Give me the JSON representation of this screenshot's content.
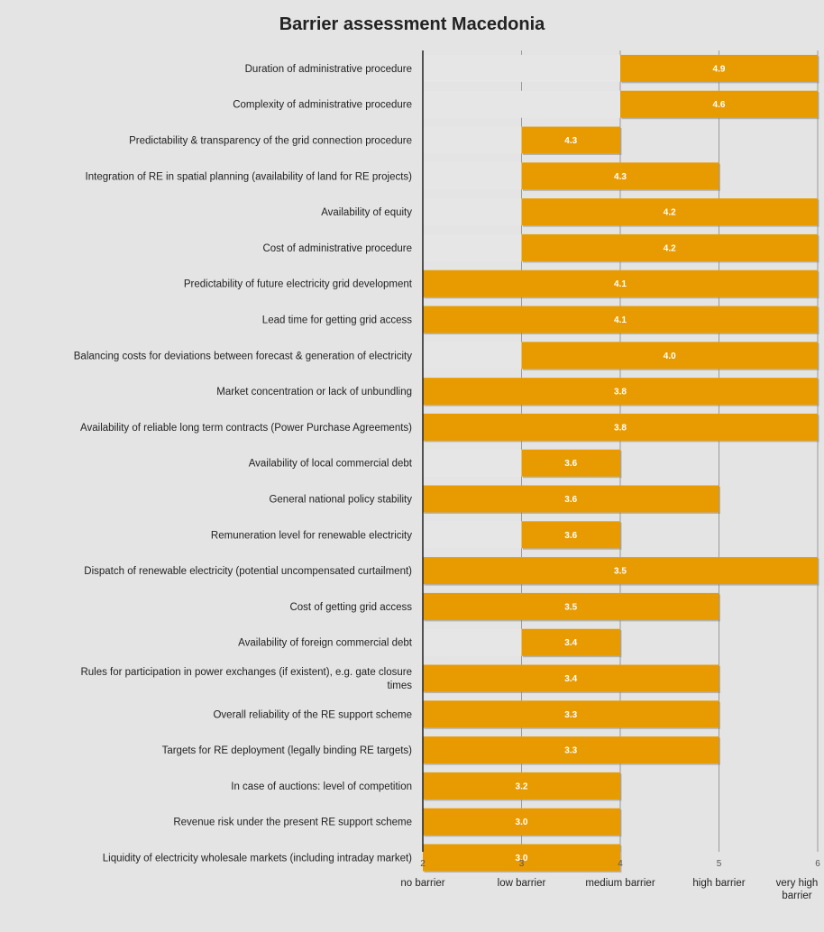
{
  "chart_data": {
    "type": "bar",
    "orientation": "horizontal",
    "title": "Barrier assessment  Macedonia",
    "xlim": [
      2,
      6
    ],
    "ticks": [
      2,
      3,
      4,
      5,
      6
    ],
    "scale_labels": [
      {
        "value": 2,
        "lines": [
          "no barrier"
        ]
      },
      {
        "value": 3,
        "lines": [
          "low barrier"
        ]
      },
      {
        "value": 4,
        "lines": [
          "medium barrier"
        ]
      },
      {
        "value": 5,
        "lines": [
          "high barrier"
        ]
      },
      {
        "value": 6,
        "lines": [
          "very high",
          "barrier"
        ]
      }
    ],
    "grid": true,
    "colors": {
      "bar": "#e89b00",
      "range": "#e6e6e6",
      "background": "#e4e4e4",
      "grid": "#9a9a9a"
    },
    "categories": [
      {
        "lines": [
          "Duration of administrative procedure"
        ],
        "value": 4.9,
        "min": 2,
        "max": 6,
        "bar_from": 4,
        "bar_to": 6
      },
      {
        "lines": [
          "Complexity of administrative procedure"
        ],
        "value": 4.6,
        "min": 2,
        "max": 6,
        "bar_from": 4,
        "bar_to": 6
      },
      {
        "lines": [
          "Predictability & transparency of the grid connection procedure"
        ],
        "value": 4.3,
        "min": 2,
        "max": 4,
        "bar_from": 3,
        "bar_to": 4
      },
      {
        "lines": [
          "Integration of RE in spatial planning (availability of land for RE projects)"
        ],
        "value": 4.3,
        "min": 2,
        "max": 5,
        "bar_from": 3,
        "bar_to": 5
      },
      {
        "lines": [
          "Availability of equity"
        ],
        "value": 4.2,
        "min": 2,
        "max": 6,
        "bar_from": 3,
        "bar_to": 6
      },
      {
        "lines": [
          "Cost of administrative procedure"
        ],
        "value": 4.2,
        "min": 2,
        "max": 6,
        "bar_from": 3,
        "bar_to": 6
      },
      {
        "lines": [
          "Predictability of future electricity grid development"
        ],
        "value": 4.1,
        "min": 2,
        "max": 6,
        "bar_from": 2,
        "bar_to": 6
      },
      {
        "lines": [
          "Lead time for getting grid access"
        ],
        "value": 4.1,
        "min": 2,
        "max": 6,
        "bar_from": 2,
        "bar_to": 6
      },
      {
        "lines": [
          "Balancing costs for deviations between forecast & generation of electricity"
        ],
        "value": 4.0,
        "min": 2,
        "max": 6,
        "bar_from": 3,
        "bar_to": 6
      },
      {
        "lines": [
          "Market concentration or lack of unbundling"
        ],
        "value": 3.8,
        "min": 2,
        "max": 6,
        "bar_from": 2,
        "bar_to": 6
      },
      {
        "lines": [
          "Availability of reliable long term contracts (Power Purchase Agreements)"
        ],
        "value": 3.8,
        "min": 2,
        "max": 6,
        "bar_from": 2,
        "bar_to": 6
      },
      {
        "lines": [
          "Availability of local commercial debt"
        ],
        "value": 3.6,
        "min": 2,
        "max": 4,
        "bar_from": 3,
        "bar_to": 4
      },
      {
        "lines": [
          "General national policy stability"
        ],
        "value": 3.6,
        "min": 2,
        "max": 5,
        "bar_from": 2,
        "bar_to": 5
      },
      {
        "lines": [
          "Remuneration level for renewable electricity"
        ],
        "value": 3.6,
        "min": 2,
        "max": 4,
        "bar_from": 3,
        "bar_to": 4
      },
      {
        "lines": [
          "Dispatch of renewable electricity (potential uncompensated curtailment)"
        ],
        "value": 3.5,
        "min": 2,
        "max": 6,
        "bar_from": 2,
        "bar_to": 6
      },
      {
        "lines": [
          "Cost of getting grid access"
        ],
        "value": 3.5,
        "min": 2,
        "max": 5,
        "bar_from": 2,
        "bar_to": 5
      },
      {
        "lines": [
          "Availability of foreign commercial debt"
        ],
        "value": 3.4,
        "min": 2,
        "max": 4,
        "bar_from": 3,
        "bar_to": 4
      },
      {
        "lines": [
          "Rules for participation in power exchanges (if existent), e.g. gate closure",
          "times"
        ],
        "value": 3.4,
        "min": 2,
        "max": 5,
        "bar_from": 2,
        "bar_to": 5
      },
      {
        "lines": [
          "Overall reliability of the RE support scheme"
        ],
        "value": 3.3,
        "min": 2,
        "max": 5,
        "bar_from": 2,
        "bar_to": 5
      },
      {
        "lines": [
          "Targets for RE deployment (legally binding RE targets)"
        ],
        "value": 3.3,
        "min": 2,
        "max": 5,
        "bar_from": 2,
        "bar_to": 5
      },
      {
        "lines": [
          "In case of auctions: level of competition"
        ],
        "value": 3.2,
        "min": 2,
        "max": 4,
        "bar_from": 2,
        "bar_to": 4
      },
      {
        "lines": [
          "Revenue risk under the present RE support scheme"
        ],
        "value": 3.0,
        "min": 2,
        "max": 4,
        "bar_from": 2,
        "bar_to": 4
      },
      {
        "lines": [
          "Liquidity of electricity wholesale markets (including intraday market)"
        ],
        "value": 3.0,
        "min": 2,
        "max": 4,
        "bar_from": 2,
        "bar_to": 4
      }
    ]
  }
}
